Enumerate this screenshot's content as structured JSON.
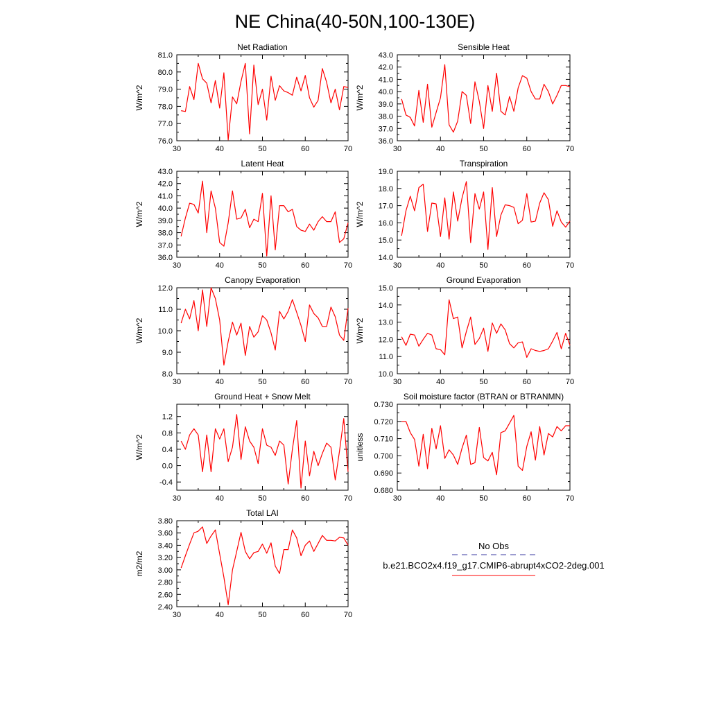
{
  "figure": {
    "title": "NE China(40-50N,100-130E)"
  },
  "legend": {
    "entries": [
      {
        "label": "No Obs",
        "style": "dashed",
        "color": "#3a3aa0"
      },
      {
        "label": "b.e21.BCO2x4.f19_g17.CMIP6-abrupt4xCO2-2deg.001",
        "style": "solid",
        "color": "#ff0000"
      }
    ]
  },
  "chart_data": [
    {
      "type": "line",
      "title": "Net Radiation",
      "ylabel": "W/m^2",
      "xlim": [
        30,
        70
      ],
      "ylim": [
        76.0,
        81.0
      ],
      "xticks": [
        "30",
        "40",
        "50",
        "60",
        "70"
      ],
      "yticks": [
        "76.0",
        "77.0",
        "78.0",
        "79.0",
        "80.0",
        "81.0"
      ],
      "series": [
        {
          "color": "#ff0000",
          "x": [
            31,
            32,
            33,
            34,
            35,
            36,
            37,
            38,
            39,
            40,
            41,
            42,
            43,
            44,
            45,
            46,
            47,
            48,
            49,
            50,
            51,
            52,
            53,
            54,
            55,
            56,
            57,
            58,
            59,
            60,
            61,
            62,
            63,
            64,
            65,
            66,
            67,
            68,
            69,
            70
          ],
          "values": [
            77.75,
            77.7,
            79.15,
            78.4,
            80.5,
            79.6,
            79.35,
            78.2,
            79.5,
            77.9,
            79.95,
            76.05,
            78.55,
            78.15,
            79.45,
            80.5,
            76.4,
            80.4,
            78.1,
            79.0,
            77.2,
            79.75,
            78.35,
            79.2,
            78.9,
            78.8,
            78.65,
            79.7,
            78.9,
            79.8,
            78.5,
            77.95,
            78.35,
            80.2,
            79.4,
            78.2,
            79.0,
            77.8,
            79.15,
            79.1
          ]
        }
      ]
    },
    {
      "type": "line",
      "title": "Sensible Heat",
      "ylabel": "W/m^2",
      "xlim": [
        30,
        70
      ],
      "ylim": [
        36.0,
        43.0
      ],
      "xticks": [
        "30",
        "40",
        "50",
        "60",
        "70"
      ],
      "yticks": [
        "36.0",
        "37.0",
        "38.0",
        "39.0",
        "40.0",
        "41.0",
        "42.0",
        "43.0"
      ],
      "series": [
        {
          "color": "#ff0000",
          "x": [
            31,
            32,
            33,
            34,
            35,
            36,
            37,
            38,
            39,
            40,
            41,
            42,
            43,
            44,
            45,
            46,
            47,
            48,
            49,
            50,
            51,
            52,
            53,
            54,
            55,
            56,
            57,
            58,
            59,
            60,
            61,
            62,
            63,
            64,
            65,
            66,
            67,
            68,
            69,
            70
          ],
          "values": [
            39.4,
            38.1,
            37.9,
            37.2,
            40.1,
            37.5,
            40.6,
            37.1,
            38.3,
            39.5,
            42.2,
            37.3,
            36.7,
            37.6,
            40.0,
            39.7,
            37.4,
            40.8,
            39.2,
            37.0,
            40.5,
            38.4,
            41.5,
            38.4,
            38.1,
            39.6,
            38.4,
            40.3,
            41.3,
            41.1,
            40.0,
            39.4,
            39.4,
            40.6,
            40.0,
            39.0,
            39.7,
            40.5,
            40.5,
            40.4
          ]
        }
      ]
    },
    {
      "type": "line",
      "title": "Latent Heat",
      "ylabel": "W/m^2",
      "xlim": [
        30,
        70
      ],
      "ylim": [
        36.0,
        43.0
      ],
      "xticks": [
        "30",
        "40",
        "50",
        "60",
        "70"
      ],
      "yticks": [
        "36.0",
        "37.0",
        "38.0",
        "39.0",
        "40.0",
        "41.0",
        "42.0",
        "43.0"
      ],
      "series": [
        {
          "color": "#ff0000",
          "x": [
            31,
            32,
            33,
            34,
            35,
            36,
            37,
            38,
            39,
            40,
            41,
            42,
            43,
            44,
            45,
            46,
            47,
            48,
            49,
            50,
            51,
            52,
            53,
            54,
            55,
            56,
            57,
            58,
            59,
            60,
            61,
            62,
            63,
            64,
            65,
            66,
            67,
            68,
            69,
            70
          ],
          "values": [
            37.7,
            39.2,
            40.4,
            40.3,
            39.6,
            42.2,
            38.0,
            41.4,
            40.0,
            37.2,
            36.9,
            38.8,
            41.4,
            39.1,
            39.2,
            39.9,
            38.4,
            39.1,
            38.9,
            41.2,
            36.1,
            41.0,
            36.6,
            40.2,
            40.2,
            39.7,
            39.9,
            38.5,
            38.2,
            38.1,
            38.7,
            38.2,
            38.9,
            39.3,
            38.9,
            38.9,
            39.7,
            37.2,
            37.5,
            38.8
          ]
        }
      ]
    },
    {
      "type": "line",
      "title": "Transpiration",
      "ylabel": "W/m^2",
      "xlim": [
        30,
        70
      ],
      "ylim": [
        14.0,
        19.0
      ],
      "xticks": [
        "30",
        "40",
        "50",
        "60",
        "70"
      ],
      "yticks": [
        "14.0",
        "15.0",
        "16.0",
        "17.0",
        "18.0",
        "19.0"
      ],
      "series": [
        {
          "color": "#ff0000",
          "x": [
            31,
            32,
            33,
            34,
            35,
            36,
            37,
            38,
            39,
            40,
            41,
            42,
            43,
            44,
            45,
            46,
            47,
            48,
            49,
            50,
            51,
            52,
            53,
            54,
            55,
            56,
            57,
            58,
            59,
            60,
            61,
            62,
            63,
            64,
            65,
            66,
            67,
            68,
            69,
            70
          ],
          "values": [
            15.25,
            16.7,
            17.55,
            16.7,
            18.05,
            18.25,
            15.5,
            17.15,
            17.1,
            15.2,
            17.45,
            15.05,
            17.8,
            16.1,
            17.45,
            18.4,
            14.85,
            17.7,
            16.8,
            17.8,
            14.45,
            18.05,
            15.2,
            16.45,
            17.05,
            17.0,
            16.9,
            15.95,
            16.15,
            17.7,
            16.05,
            16.1,
            17.15,
            17.75,
            17.35,
            15.8,
            16.7,
            16.05,
            15.75,
            16.1
          ]
        }
      ]
    },
    {
      "type": "line",
      "title": "Canopy Evaporation",
      "ylabel": "W/m^2",
      "xlim": [
        30,
        70
      ],
      "ylim": [
        8.0,
        12.0
      ],
      "xticks": [
        "30",
        "40",
        "50",
        "60",
        "70"
      ],
      "yticks": [
        "8.0",
        "9.0",
        "10.0",
        "11.0",
        "12.0"
      ],
      "series": [
        {
          "color": "#ff0000",
          "x": [
            31,
            32,
            33,
            34,
            35,
            36,
            37,
            38,
            39,
            40,
            41,
            42,
            43,
            44,
            45,
            46,
            47,
            48,
            49,
            50,
            51,
            52,
            53,
            54,
            55,
            56,
            57,
            58,
            59,
            60,
            61,
            62,
            63,
            64,
            65,
            66,
            67,
            68,
            69,
            70
          ],
          "values": [
            10.35,
            11.0,
            10.55,
            11.4,
            10.0,
            11.9,
            10.2,
            12.0,
            11.5,
            10.5,
            8.4,
            9.5,
            10.4,
            9.8,
            10.35,
            8.85,
            10.2,
            9.7,
            9.95,
            10.7,
            10.5,
            9.9,
            9.1,
            10.9,
            10.55,
            10.9,
            11.45,
            10.85,
            10.25,
            9.5,
            11.2,
            10.8,
            10.6,
            10.2,
            10.2,
            11.1,
            10.65,
            9.8,
            9.55,
            11.05
          ]
        }
      ]
    },
    {
      "type": "line",
      "title": "Ground Evaporation",
      "ylabel": "W/m^2",
      "xlim": [
        30,
        70
      ],
      "ylim": [
        10.0,
        15.0
      ],
      "xticks": [
        "30",
        "40",
        "50",
        "60",
        "70"
      ],
      "yticks": [
        "10.0",
        "11.0",
        "12.0",
        "13.0",
        "14.0",
        "15.0"
      ],
      "series": [
        {
          "color": "#ff0000",
          "x": [
            31,
            32,
            33,
            34,
            35,
            36,
            37,
            38,
            39,
            40,
            41,
            42,
            43,
            44,
            45,
            46,
            47,
            48,
            49,
            50,
            51,
            52,
            53,
            54,
            55,
            56,
            57,
            58,
            59,
            60,
            61,
            62,
            63,
            64,
            65,
            66,
            67,
            68,
            69,
            70
          ],
          "values": [
            12.15,
            11.65,
            12.3,
            12.25,
            11.6,
            12.0,
            12.35,
            12.25,
            11.45,
            11.4,
            11.1,
            14.3,
            13.2,
            13.3,
            11.5,
            12.45,
            13.3,
            11.7,
            12.05,
            12.65,
            11.3,
            12.95,
            12.35,
            12.9,
            12.55,
            11.75,
            11.5,
            11.8,
            11.85,
            10.95,
            11.45,
            11.35,
            11.3,
            11.35,
            11.45,
            11.9,
            12.4,
            11.45,
            12.35,
            11.65
          ]
        }
      ]
    },
    {
      "type": "line",
      "title": "Ground Heat + Snow Melt",
      "ylabel": "W/m^2",
      "xlim": [
        30,
        70
      ],
      "ylim": [
        -0.6,
        1.5
      ],
      "xticks": [
        "30",
        "40",
        "50",
        "60",
        "70"
      ],
      "yticks": [
        "-0.4",
        "0.0",
        "0.4",
        "0.8",
        "1.2"
      ],
      "ytick_values": [
        -0.4,
        0.0,
        0.4,
        0.8,
        1.2
      ],
      "series": [
        {
          "color": "#ff0000",
          "x": [
            31,
            32,
            33,
            34,
            35,
            36,
            37,
            38,
            39,
            40,
            41,
            42,
            43,
            44,
            45,
            46,
            47,
            48,
            49,
            50,
            51,
            52,
            53,
            54,
            55,
            56,
            57,
            58,
            59,
            60,
            61,
            62,
            63,
            64,
            65,
            66,
            67,
            68,
            69,
            70
          ],
          "values": [
            0.6,
            0.4,
            0.75,
            0.9,
            0.75,
            -0.15,
            0.75,
            -0.15,
            0.9,
            0.65,
            0.9,
            0.1,
            0.45,
            1.25,
            0.15,
            0.95,
            0.6,
            0.45,
            0.05,
            0.9,
            0.5,
            0.45,
            0.25,
            0.6,
            0.5,
            -0.45,
            0.4,
            1.1,
            -0.55,
            0.6,
            -0.25,
            0.35,
            0.0,
            0.3,
            0.55,
            0.45,
            -0.35,
            0.35,
            1.15,
            -0.15
          ]
        }
      ]
    },
    {
      "type": "line",
      "title": "Soil moisture factor (BTRAN or BTRANMN)",
      "ylabel": "unitless",
      "xlim": [
        30,
        70
      ],
      "ylim": [
        0.68,
        0.73
      ],
      "xticks": [
        "30",
        "40",
        "50",
        "60",
        "70"
      ],
      "yticks": [
        "0.680",
        "0.690",
        "0.700",
        "0.710",
        "0.720",
        "0.730"
      ],
      "series": [
        {
          "color": "#ff0000",
          "x": [
            31,
            32,
            33,
            34,
            35,
            36,
            37,
            38,
            39,
            40,
            41,
            42,
            43,
            44,
            45,
            46,
            47,
            48,
            49,
            50,
            51,
            52,
            53,
            54,
            55,
            56,
            57,
            58,
            59,
            60,
            61,
            62,
            63,
            64,
            65,
            66,
            67,
            68,
            69,
            70
          ],
          "values": [
            0.72,
            0.72,
            0.7135,
            0.7095,
            0.694,
            0.7125,
            0.6925,
            0.716,
            0.704,
            0.7175,
            0.6985,
            0.7035,
            0.7005,
            0.695,
            0.7045,
            0.712,
            0.695,
            0.696,
            0.7165,
            0.699,
            0.697,
            0.702,
            0.689,
            0.7135,
            0.7145,
            0.719,
            0.7235,
            0.694,
            0.6915,
            0.7055,
            0.714,
            0.6975,
            0.717,
            0.7005,
            0.713,
            0.711,
            0.717,
            0.7145,
            0.7175,
            0.7175
          ]
        }
      ]
    },
    {
      "type": "line",
      "title": "Total LAI",
      "ylabel": "m2/m2",
      "xlim": [
        30,
        70
      ],
      "ylim": [
        2.4,
        3.8
      ],
      "xticks": [
        "30",
        "40",
        "50",
        "60",
        "70"
      ],
      "yticks": [
        "2.40",
        "2.60",
        "2.80",
        "3.00",
        "3.20",
        "3.40",
        "3.60",
        "3.80"
      ],
      "series": [
        {
          "color": "#ff0000",
          "x": [
            31,
            32,
            33,
            34,
            35,
            36,
            37,
            38,
            39,
            40,
            41,
            42,
            43,
            44,
            45,
            46,
            47,
            48,
            49,
            50,
            51,
            52,
            53,
            54,
            55,
            56,
            57,
            58,
            59,
            60,
            61,
            62,
            63,
            64,
            65,
            66,
            67,
            68,
            69,
            70
          ],
          "values": [
            3.03,
            3.23,
            3.42,
            3.6,
            3.63,
            3.7,
            3.43,
            3.55,
            3.65,
            3.26,
            2.88,
            2.43,
            3.0,
            3.3,
            3.61,
            3.3,
            3.18,
            3.28,
            3.3,
            3.42,
            3.27,
            3.44,
            3.06,
            2.94,
            3.33,
            3.33,
            3.65,
            3.52,
            3.23,
            3.4,
            3.47,
            3.3,
            3.43,
            3.56,
            3.48,
            3.48,
            3.47,
            3.53,
            3.52,
            3.4
          ]
        }
      ]
    }
  ]
}
